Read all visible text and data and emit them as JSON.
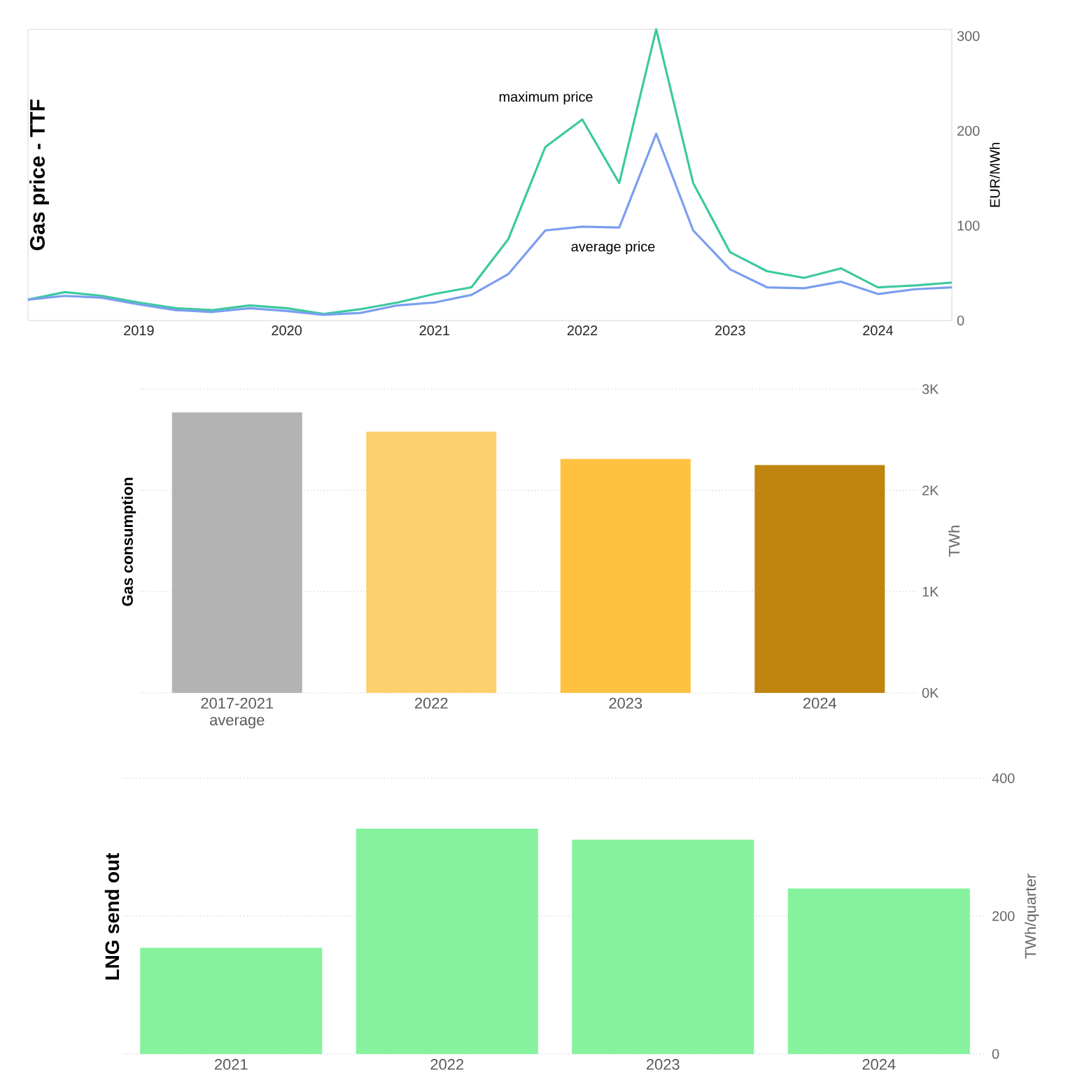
{
  "chart_data": [
    {
      "type": "line",
      "title": "Gas price - TTF",
      "ylabel": "EUR/MWh",
      "x": [
        2018.25,
        2018.5,
        2018.75,
        2019,
        2019.25,
        2019.5,
        2019.75,
        2020,
        2020.25,
        2020.5,
        2020.75,
        2021,
        2021.25,
        2021.5,
        2021.75,
        2022,
        2022.25,
        2022.5,
        2022.75,
        2023,
        2023.25,
        2023.5,
        2023.75,
        2024,
        2024.25,
        2024.5
      ],
      "series": [
        {
          "color": "#3cc9a0",
          "values": [
            22,
            30,
            26,
            19,
            13,
            11,
            16,
            13,
            7,
            12,
            19,
            28,
            35,
            86,
            183,
            212,
            145,
            307,
            145,
            72,
            52,
            45,
            55,
            35,
            37,
            40
          ]
        },
        {
          "color": "#7b9ef0",
          "values": [
            22,
            26,
            24,
            17,
            11,
            9,
            13,
            10,
            6,
            8,
            16,
            19,
            27,
            49,
            95,
            99,
            98,
            197,
            95,
            54,
            35,
            34,
            41,
            28,
            33,
            35
          ]
        }
      ],
      "annotations": [
        "maximum price",
        "average price"
      ],
      "xlim": [
        2018.25,
        2024.5
      ],
      "ylim": [
        0,
        307
      ],
      "xticks": [
        2019,
        2020,
        2021,
        2022,
        2023,
        2024
      ],
      "yticks": [
        0,
        100,
        200,
        300
      ],
      "grid": false
    },
    {
      "type": "bar",
      "title": "Gas consumption",
      "ylabel": "TWh",
      "categories": [
        "2017-2021 average",
        "2022",
        "2023",
        "2024"
      ],
      "values": [
        2770,
        2580,
        2310,
        2250
      ],
      "colors": [
        "#b3b3b3",
        "#fdd06e",
        "#ffc240",
        "#bf850e"
      ],
      "ylim": [
        0,
        3000
      ],
      "yticks": [
        {
          "value": 0,
          "label": "0K"
        },
        {
          "value": 1000,
          "label": "1K"
        },
        {
          "value": 2000,
          "label": "2K"
        },
        {
          "value": 3000,
          "label": "3K"
        }
      ],
      "grid": "y"
    },
    {
      "type": "bar",
      "title": "LNG send out",
      "ylabel": "TWh/quarter",
      "categories": [
        "2021",
        "2022",
        "2023",
        "2024"
      ],
      "values": [
        154,
        327,
        311,
        240
      ],
      "colors": [
        "#86f29e",
        "#86f29e",
        "#86f29e",
        "#86f29e"
      ],
      "ylim": [
        0,
        400
      ],
      "yticks": [
        0,
        200,
        400
      ],
      "grid": "y"
    }
  ]
}
